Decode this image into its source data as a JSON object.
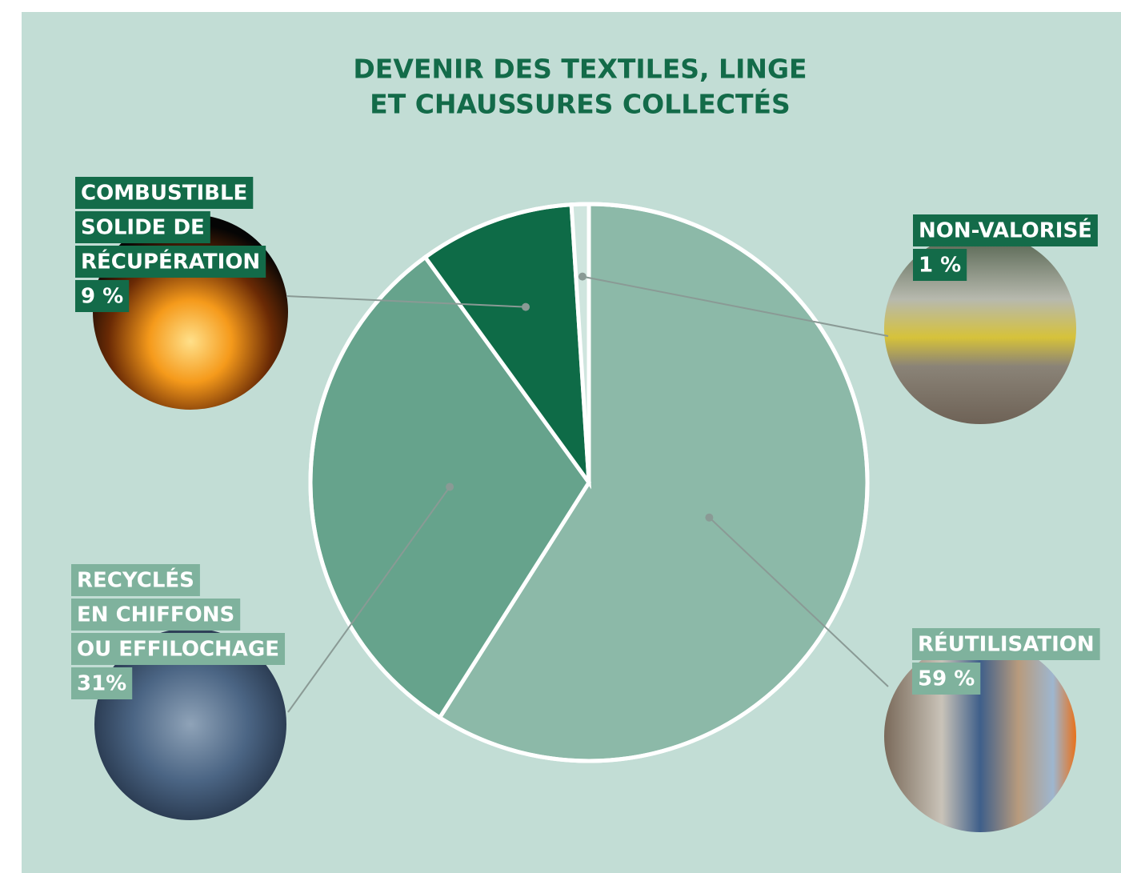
{
  "chart_data": {
    "type": "pie",
    "title": [
      "DEVENIR DES TEXTILES, LINGE",
      "ET CHAUSSURES COLLECTÉS"
    ],
    "categories": [
      [
        "RÉUTILISATION"
      ],
      [
        "RECYCLÉS",
        "EN CHIFFONS",
        "OU EFFILOCHAGE"
      ],
      [
        "COMBUSTIBLE",
        "SOLIDE DE",
        "RÉCUPÉRATION"
      ],
      [
        "NON-VALORISÉ"
      ]
    ],
    "values": [
      59,
      31,
      9,
      1
    ],
    "value_labels": [
      "59 %",
      "31%",
      "9 %",
      "1 %"
    ],
    "colors": [
      "#8cb9a8",
      "#66a38c",
      "#0e6b47",
      "#cfe5de"
    ]
  }
}
